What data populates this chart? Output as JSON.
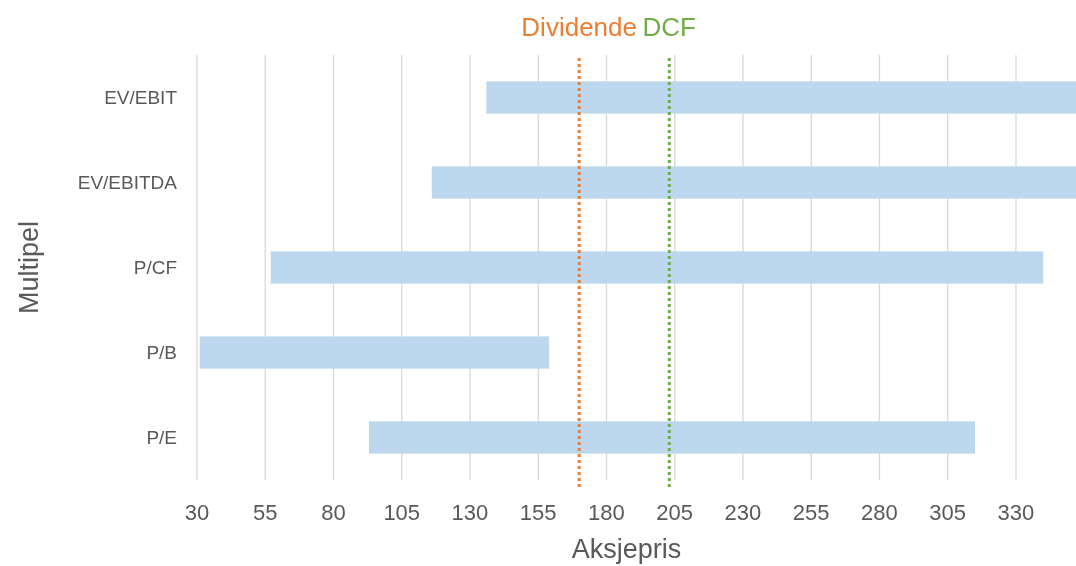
{
  "chart_data": {
    "type": "bar",
    "orientation": "horizontal",
    "xlabel": "Aksjepris",
    "ylabel": "Multipel",
    "categories": [
      "EV/EBIT",
      "EV/EBITDA",
      "P/CF",
      "P/B",
      "P/E"
    ],
    "base": [
      136,
      116,
      57,
      31,
      93
    ],
    "values": [
      216,
      236,
      283,
      128,
      222
    ],
    "color": "#bdd7ee",
    "xlim": [
      30,
      352
    ],
    "xticks": [
      30,
      55,
      80,
      105,
      130,
      155,
      180,
      205,
      230,
      255,
      280,
      305,
      330
    ],
    "grid": "x",
    "ref_lines": [
      {
        "axis": "x",
        "value": 170,
        "label": "Dividende",
        "color": "#ed7d31",
        "line_style": "dotted"
      },
      {
        "axis": "x",
        "value": 203,
        "label": "DCF",
        "color": "#70ad47",
        "line_style": "dotted"
      }
    ]
  }
}
